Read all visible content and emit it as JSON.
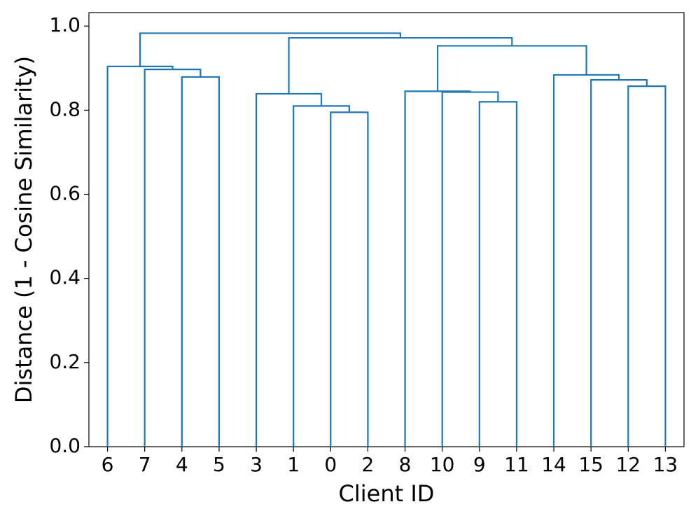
{
  "chart_data": {
    "type": "dendrogram",
    "xlabel": "Client ID",
    "ylabel": "Distance (1 - Cosine Similarity)",
    "color": "#1f77b4",
    "ylim": [
      0,
      1.032
    ],
    "yticks": [
      {
        "value": 0,
        "label": "0.0"
      },
      0.2,
      0.4,
      0.6,
      0.8,
      {
        "value": 1,
        "label": "1.0"
      }
    ],
    "tree": {
      "height": 0.983,
      "children": [
        {
          "height": 0.904,
          "children": [
            {
              "label": "6"
            },
            {
              "height": 0.897,
              "children": [
                {
                  "label": "7"
                },
                {
                  "height": 0.879,
                  "children": [
                    {
                      "label": "4"
                    },
                    {
                      "label": "5"
                    }
                  ]
                }
              ]
            }
          ]
        },
        {
          "height": 0.972,
          "children": [
            {
              "height": 0.839,
              "children": [
                {
                  "label": "3"
                },
                {
                  "height": 0.81,
                  "children": [
                    {
                      "label": "1"
                    },
                    {
                      "height": 0.795,
                      "children": [
                        {
                          "label": "0"
                        },
                        {
                          "label": "2"
                        }
                      ]
                    }
                  ]
                }
              ]
            },
            {
              "height": 0.953,
              "children": [
                {
                  "height": 0.845,
                  "children": [
                    {
                      "label": "8"
                    },
                    {
                      "height": 0.843,
                      "children": [
                        {
                          "label": "10"
                        },
                        {
                          "height": 0.82,
                          "children": [
                            {
                              "label": "9"
                            },
                            {
                              "label": "11"
                            }
                          ]
                        }
                      ]
                    }
                  ]
                },
                {
                  "height": 0.884,
                  "children": [
                    {
                      "label": "14"
                    },
                    {
                      "height": 0.872,
                      "children": [
                        {
                          "label": "15"
                        },
                        {
                          "height": 0.857,
                          "children": [
                            {
                              "label": "12"
                            },
                            {
                              "label": "13"
                            }
                          ]
                        }
                      ]
                    }
                  ]
                }
              ]
            }
          ]
        }
      ]
    }
  }
}
